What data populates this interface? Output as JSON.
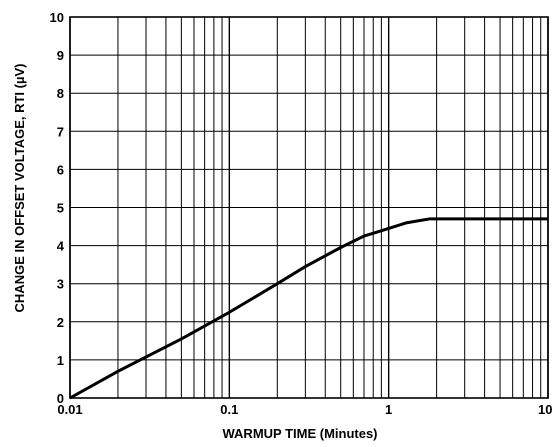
{
  "chart_data": {
    "type": "line",
    "title": "",
    "xlabel": "WARMUP TIME (Minutes)",
    "ylabel": "CHANGE IN OFFSET VOLTAGE, RTI (µV)",
    "x_scale": "log",
    "xlim": [
      0.01,
      10
    ],
    "ylim": [
      0,
      10
    ],
    "grid": true,
    "x_ticks": [
      0.01,
      0.1,
      1,
      10
    ],
    "x_tick_labels": [
      "0.01",
      "0.1",
      "1",
      "10"
    ],
    "y_ticks": [
      0,
      1,
      2,
      3,
      4,
      5,
      6,
      7,
      8,
      9,
      10
    ],
    "y_tick_labels": [
      "0",
      "1",
      "2",
      "3",
      "4",
      "5",
      "6",
      "7",
      "8",
      "9",
      "10"
    ],
    "series": [
      {
        "x": [
          0.01,
          0.02,
          0.05,
          0.1,
          0.2,
          0.3,
          0.5,
          0.7,
          1.0,
          1.3,
          1.8,
          3.0,
          5.0,
          10
        ],
        "y": [
          0.0,
          0.7,
          1.55,
          2.25,
          3.0,
          3.45,
          3.95,
          4.25,
          4.45,
          4.6,
          4.7,
          4.7,
          4.7,
          4.7
        ]
      }
    ]
  },
  "colors": {
    "line": "#000000",
    "grid": "#000000",
    "background": "#ffffff"
  }
}
